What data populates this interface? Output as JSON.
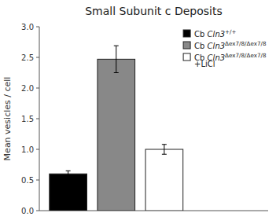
{
  "chart_data": {
    "type": "bar",
    "title": "Small Subunit c Deposits",
    "y_label": "Mean vesicles / cell",
    "categories": [
      "Cb Cln3+/+",
      "Cb Cln3Δex7/8/Δex7/8",
      "Cb Cln3Δex7/8/Δex7/8\n+LiCl"
    ],
    "values": [
      0.6,
      2.47,
      1.0
    ],
    "errors": [
      0.05,
      0.22,
      0.08
    ],
    "colors": [
      "#000000",
      "#888888",
      "#ffffff"
    ],
    "ylim": [
      0,
      3.0
    ],
    "yticks": [
      {
        "value": 0,
        "label": "0.0"
      },
      0.5,
      {
        "value": 1.0,
        "label": "1.0"
      },
      1.5,
      {
        "value": 2.0,
        "label": "2.0"
      },
      2.5,
      {
        "value": 3.0,
        "label": "3.0"
      }
    ],
    "tick_labels": "y",
    "legend": "upper right",
    "grid": false
  }
}
